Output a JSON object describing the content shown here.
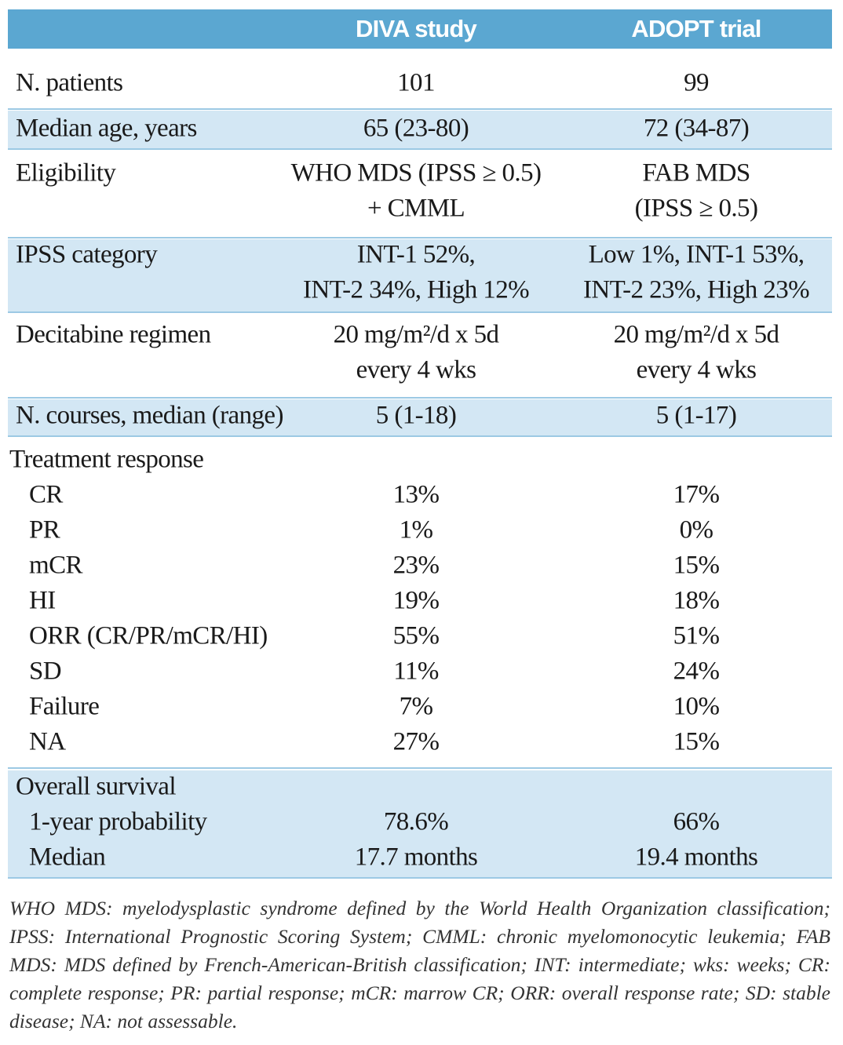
{
  "table": {
    "columns": [
      "DIVA study",
      "ADOPT trial"
    ],
    "rows": [
      {
        "label": "N. patients",
        "cells": [
          [
            "101"
          ],
          [
            "99"
          ]
        ]
      },
      {
        "label": "Median age, years",
        "cells": [
          [
            "65 (23-80)"
          ],
          [
            "72 (34-87)"
          ]
        ]
      },
      {
        "label": "Eligibility",
        "cells": [
          [
            "WHO MDS (IPSS ≥ 0.5)",
            "+ CMML"
          ],
          [
            "FAB MDS",
            "(IPSS ≥ 0.5)"
          ]
        ]
      },
      {
        "label": "IPSS category",
        "cells": [
          [
            "INT-1 52%,",
            "INT-2 34%, High 12%"
          ],
          [
            "Low 1%, INT-1 53%,",
            "INT-2 23%, High 23%"
          ]
        ]
      },
      {
        "label": "Decitabine regimen",
        "cells": [
          [
            "20 mg/m²/d x 5d",
            "every 4 wks"
          ],
          [
            "20 mg/m²/d x 5d",
            "every 4 wks"
          ]
        ]
      },
      {
        "label": "N. courses, median (range)",
        "cells": [
          [
            "5 (1-18)"
          ],
          [
            "5 (1-17)"
          ]
        ]
      }
    ],
    "sections": [
      {
        "title": "Treatment response",
        "rows": [
          {
            "label": "CR",
            "cells": [
              "13%",
              "17%"
            ]
          },
          {
            "label": "PR",
            "cells": [
              "1%",
              "0%"
            ]
          },
          {
            "label": "mCR",
            "cells": [
              "23%",
              "15%"
            ]
          },
          {
            "label": "HI",
            "cells": [
              "19%",
              "18%"
            ]
          },
          {
            "label": "ORR (CR/PR/mCR/HI)",
            "cells": [
              "55%",
              "51%"
            ]
          },
          {
            "label": "SD",
            "cells": [
              "11%",
              "24%"
            ]
          },
          {
            "label": "Failure",
            "cells": [
              "7%",
              "10%"
            ]
          },
          {
            "label": "NA",
            "cells": [
              "27%",
              "15%"
            ]
          }
        ]
      },
      {
        "title": "Overall survival",
        "rows": [
          {
            "label": "1-year probability",
            "cells": [
              "78.6%",
              "66%"
            ]
          },
          {
            "label": "Median",
            "cells": [
              "17.7 months",
              "19.4 months"
            ]
          }
        ]
      }
    ]
  },
  "footnote": "WHO MDS: myelodysplastic syndrome defined by the World Health Organization classification; IPSS: International Prognostic Scoring System; CMML: chronic myelomonocytic leukemia; FAB MDS: MDS defined by French-American-British classification; INT: intermediate; wks: weeks; CR: complete response; PR: partial response; mCR: marrow CR; ORR: overall response rate; SD: stable disease; NA: not assessable."
}
